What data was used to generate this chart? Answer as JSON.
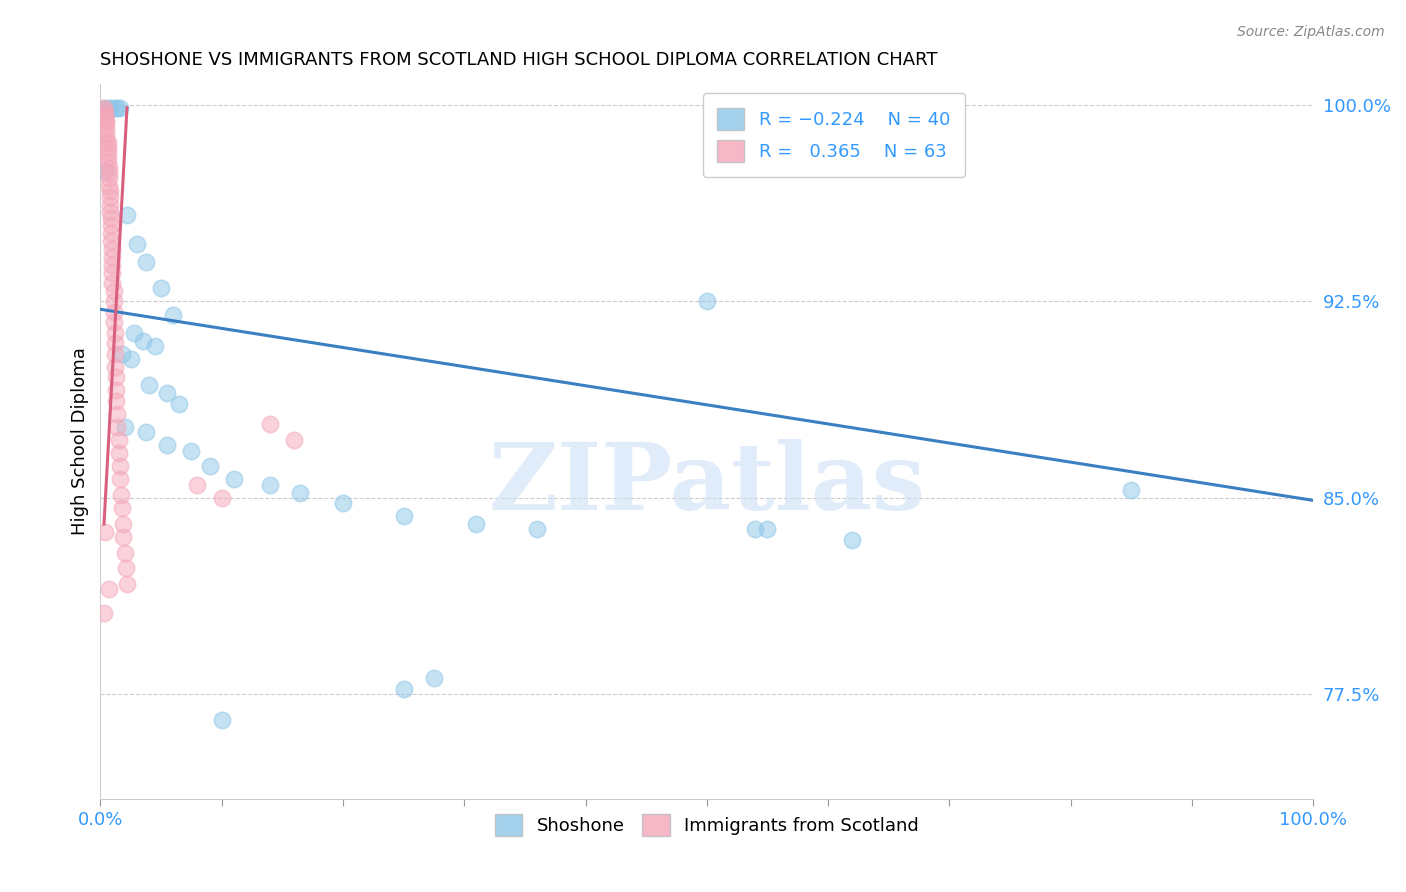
{
  "title": "SHOSHONE VS IMMIGRANTS FROM SCOTLAND HIGH SCHOOL DIPLOMA CORRELATION CHART",
  "source": "Source: ZipAtlas.com",
  "ylabel": "High School Diploma",
  "xlim": [
    0.0,
    1.0
  ],
  "ylim": [
    0.735,
    1.008
  ],
  "yticks": [
    0.775,
    0.85,
    0.925,
    1.0
  ],
  "ytick_labels": [
    "77.5%",
    "85.0%",
    "92.5%",
    "100.0%"
  ],
  "watermark": "ZIPatlas",
  "blue_color": "#8dc6e8",
  "pink_color": "#f4a7b9",
  "trendline_blue": "#3a7fc1",
  "trendline_pink": "#d95f7f",
  "blue_scatter": [
    [
      0.003,
      0.999
    ],
    [
      0.007,
      0.999
    ],
    [
      0.009,
      0.999
    ],
    [
      0.012,
      0.999
    ],
    [
      0.014,
      0.999
    ],
    [
      0.016,
      0.999
    ],
    [
      0.004,
      0.975
    ],
    [
      0.022,
      0.958
    ],
    [
      0.03,
      0.947
    ],
    [
      0.038,
      0.94
    ],
    [
      0.05,
      0.93
    ],
    [
      0.06,
      0.92
    ],
    [
      0.028,
      0.913
    ],
    [
      0.035,
      0.91
    ],
    [
      0.045,
      0.908
    ],
    [
      0.018,
      0.905
    ],
    [
      0.025,
      0.903
    ],
    [
      0.04,
      0.893
    ],
    [
      0.055,
      0.89
    ],
    [
      0.065,
      0.886
    ],
    [
      0.02,
      0.877
    ],
    [
      0.038,
      0.875
    ],
    [
      0.055,
      0.87
    ],
    [
      0.075,
      0.868
    ],
    [
      0.09,
      0.862
    ],
    [
      0.11,
      0.857
    ],
    [
      0.14,
      0.855
    ],
    [
      0.165,
      0.852
    ],
    [
      0.2,
      0.848
    ],
    [
      0.25,
      0.843
    ],
    [
      0.31,
      0.84
    ],
    [
      0.36,
      0.838
    ],
    [
      0.5,
      0.925
    ],
    [
      0.54,
      0.838
    ],
    [
      0.85,
      0.853
    ],
    [
      0.55,
      0.838
    ],
    [
      0.1,
      0.765
    ],
    [
      0.25,
      0.777
    ],
    [
      0.275,
      0.781
    ],
    [
      0.62,
      0.834
    ]
  ],
  "pink_scatter": [
    [
      0.003,
      0.999
    ],
    [
      0.003,
      0.998
    ],
    [
      0.004,
      0.997
    ],
    [
      0.004,
      0.996
    ],
    [
      0.004,
      0.995
    ],
    [
      0.005,
      0.994
    ],
    [
      0.005,
      0.993
    ],
    [
      0.005,
      0.991
    ],
    [
      0.005,
      0.989
    ],
    [
      0.005,
      0.987
    ],
    [
      0.006,
      0.986
    ],
    [
      0.006,
      0.984
    ],
    [
      0.006,
      0.982
    ],
    [
      0.006,
      0.98
    ],
    [
      0.006,
      0.978
    ],
    [
      0.007,
      0.976
    ],
    [
      0.007,
      0.974
    ],
    [
      0.007,
      0.972
    ],
    [
      0.007,
      0.969
    ],
    [
      0.008,
      0.967
    ],
    [
      0.008,
      0.965
    ],
    [
      0.008,
      0.962
    ],
    [
      0.008,
      0.959
    ],
    [
      0.009,
      0.957
    ],
    [
      0.009,
      0.954
    ],
    [
      0.009,
      0.951
    ],
    [
      0.009,
      0.948
    ],
    [
      0.01,
      0.945
    ],
    [
      0.01,
      0.942
    ],
    [
      0.01,
      0.939
    ],
    [
      0.01,
      0.936
    ],
    [
      0.01,
      0.932
    ],
    [
      0.011,
      0.929
    ],
    [
      0.011,
      0.925
    ],
    [
      0.011,
      0.921
    ],
    [
      0.011,
      0.917
    ],
    [
      0.012,
      0.913
    ],
    [
      0.012,
      0.909
    ],
    [
      0.012,
      0.905
    ],
    [
      0.012,
      0.9
    ],
    [
      0.013,
      0.896
    ],
    [
      0.013,
      0.891
    ],
    [
      0.013,
      0.887
    ],
    [
      0.014,
      0.882
    ],
    [
      0.014,
      0.877
    ],
    [
      0.015,
      0.872
    ],
    [
      0.015,
      0.867
    ],
    [
      0.016,
      0.862
    ],
    [
      0.016,
      0.857
    ],
    [
      0.017,
      0.851
    ],
    [
      0.018,
      0.846
    ],
    [
      0.019,
      0.84
    ],
    [
      0.019,
      0.835
    ],
    [
      0.02,
      0.829
    ],
    [
      0.021,
      0.823
    ],
    [
      0.022,
      0.817
    ],
    [
      0.004,
      0.837
    ],
    [
      0.14,
      0.878
    ],
    [
      0.16,
      0.872
    ],
    [
      0.007,
      0.815
    ],
    [
      0.003,
      0.806
    ],
    [
      0.08,
      0.855
    ],
    [
      0.1,
      0.85
    ]
  ],
  "blue_trend_x": [
    0.0,
    1.0
  ],
  "blue_trend_y": [
    0.922,
    0.849
  ],
  "pink_trend_x": [
    0.003,
    0.022
  ],
  "pink_trend_y": [
    0.84,
    0.999
  ]
}
